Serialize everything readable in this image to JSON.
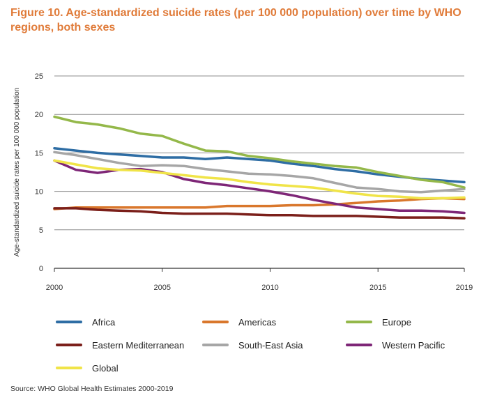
{
  "figure": {
    "title": "Figure 10. Age-standardized suicide rates (per 100 000 population) over time by WHO regions, both sexes",
    "source": "Source: WHO Global Health Estimates 2000-2019"
  },
  "chart_data": {
    "type": "line",
    "title": "Figure 10. Age-standardized suicide rates (per 100 000 population) over time by WHO regions, both sexes",
    "xlabel": "",
    "ylabel": "Age-standardized suicide rates per 100 000 population",
    "x": [
      2000,
      2001,
      2002,
      2003,
      2004,
      2005,
      2006,
      2007,
      2008,
      2009,
      2010,
      2011,
      2012,
      2013,
      2014,
      2015,
      2016,
      2017,
      2018,
      2019
    ],
    "x_ticks": [
      2000,
      2005,
      2010,
      2015,
      2019
    ],
    "ylim": [
      0,
      25
    ],
    "y_ticks": [
      0,
      5,
      10,
      15,
      20,
      25
    ],
    "grid": true,
    "legend_position": "bottom",
    "series": [
      {
        "name": "Africa",
        "color": "#2e6da4",
        "values": [
          15.6,
          15.3,
          15.0,
          14.8,
          14.6,
          14.4,
          14.4,
          14.2,
          14.4,
          14.2,
          14.0,
          13.6,
          13.3,
          12.9,
          12.6,
          12.2,
          11.9,
          11.6,
          11.4,
          11.2
        ]
      },
      {
        "name": "Americas",
        "color": "#d9772c",
        "values": [
          7.7,
          7.9,
          7.9,
          7.9,
          7.9,
          7.9,
          7.9,
          7.9,
          8.1,
          8.1,
          8.1,
          8.2,
          8.2,
          8.3,
          8.5,
          8.7,
          8.8,
          9.0,
          9.1,
          9.0
        ]
      },
      {
        "name": "Europe",
        "color": "#94b84a",
        "values": [
          19.7,
          19.0,
          18.7,
          18.2,
          17.5,
          17.2,
          16.2,
          15.3,
          15.2,
          14.6,
          14.3,
          13.9,
          13.6,
          13.3,
          13.1,
          12.5,
          12.0,
          11.5,
          11.2,
          10.5
        ]
      },
      {
        "name": "Eastern Mediterranean",
        "color": "#7b1f1a",
        "values": [
          7.8,
          7.8,
          7.6,
          7.5,
          7.4,
          7.2,
          7.1,
          7.1,
          7.1,
          7.0,
          6.9,
          6.9,
          6.8,
          6.8,
          6.8,
          6.7,
          6.6,
          6.6,
          6.6,
          6.5
        ]
      },
      {
        "name": "South-East Asia",
        "color": "#a6a6a6",
        "values": [
          15.1,
          14.7,
          14.2,
          13.7,
          13.3,
          13.4,
          13.3,
          12.9,
          12.6,
          12.3,
          12.2,
          12.0,
          11.7,
          11.1,
          10.5,
          10.3,
          10.0,
          9.9,
          10.1,
          10.3
        ]
      },
      {
        "name": "Western Pacific",
        "color": "#7e2677",
        "values": [
          14.0,
          12.8,
          12.4,
          12.8,
          12.9,
          12.5,
          11.6,
          11.1,
          10.8,
          10.4,
          10.0,
          9.5,
          8.9,
          8.4,
          7.9,
          7.7,
          7.5,
          7.5,
          7.4,
          7.2
        ]
      },
      {
        "name": "Global",
        "color": "#f0e448",
        "values": [
          14.0,
          13.5,
          13.0,
          12.8,
          12.7,
          12.4,
          12.1,
          11.8,
          11.6,
          11.2,
          10.9,
          10.7,
          10.5,
          10.1,
          9.7,
          9.4,
          9.3,
          9.1,
          9.1,
          9.2
        ]
      }
    ]
  }
}
